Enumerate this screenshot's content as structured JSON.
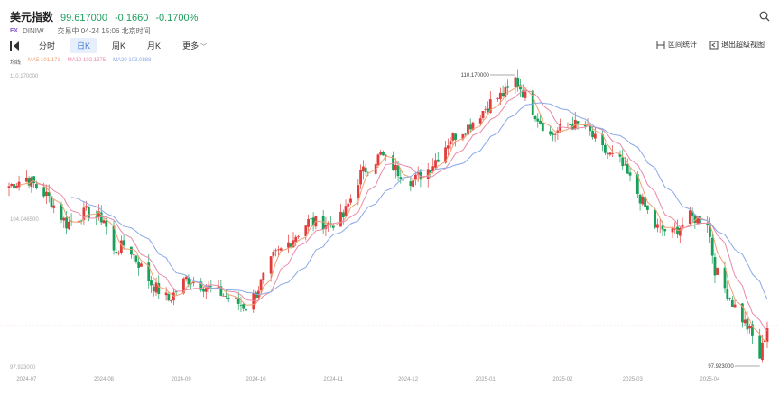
{
  "header": {
    "name": "美元指数",
    "price": "99.617000",
    "change": "-0.1660",
    "change_pct": "-0.1700%",
    "market_tag": "FX",
    "code": "DINIW",
    "status": "交易中 04-24 15:06 北京时间"
  },
  "toolbar": {
    "tabs": [
      {
        "label": "分时",
        "active": false
      },
      {
        "label": "日K",
        "active": true
      },
      {
        "label": "周K",
        "active": false
      },
      {
        "label": "月K",
        "active": false
      },
      {
        "label": "更多",
        "active": false
      }
    ],
    "range_stats": "区间统计",
    "exit_mode": "退出超级视图"
  },
  "legend": {
    "label": "均线",
    "ma5": "MA5 101.171",
    "ma10": "MA10 102.1375",
    "ma20": "MA20 103.0888"
  },
  "colors": {
    "up": "#e23c3c",
    "down": "#16a05a",
    "ma5": "#f0a070",
    "ma10": "#e88aa8",
    "ma20": "#8aa8e8",
    "accent": "#3c78d8"
  },
  "chart_data": {
    "type": "candlestick",
    "y_axis_labels": [
      "110.170000",
      "104.046500",
      "97.923000"
    ],
    "ylim": [
      97.923,
      110.17
    ],
    "high_marker": "110.170000",
    "low_marker": "97.923000",
    "reference_line": 99.617,
    "x_labels": [
      "2024-07",
      "2024-08",
      "2024-09",
      "2024-10",
      "2024-11",
      "2024-12",
      "2025-01",
      "2025-02",
      "2025-03",
      "2025-04"
    ],
    "x_label_dates": [
      "2024-07-01",
      "2024-08-01",
      "2024-09-01",
      "2024-10-01",
      "2024-11-01",
      "2024-12-01",
      "2025-01-01",
      "2025-02-01",
      "2025-03-01",
      "2025-04-01"
    ],
    "date_range": [
      "2024-06-24",
      "2025-04-24"
    ],
    "close_path": [
      [
        "2024-06-24",
        105.5
      ],
      [
        "2024-07-01",
        105.85
      ],
      [
        "2024-07-10",
        105.0
      ],
      [
        "2024-07-17",
        103.9
      ],
      [
        "2024-07-25",
        104.4
      ],
      [
        "2024-08-01",
        104.1
      ],
      [
        "2024-08-05",
        102.7
      ],
      [
        "2024-08-10",
        103.1
      ],
      [
        "2024-08-20",
        101.4
      ],
      [
        "2024-08-27",
        100.7
      ],
      [
        "2024-09-03",
        101.6
      ],
      [
        "2024-09-10",
        101.3
      ],
      [
        "2024-09-15",
        101.1
      ],
      [
        "2024-09-20",
        100.8
      ],
      [
        "2024-09-27",
        100.4
      ],
      [
        "2024-10-01",
        101.0
      ],
      [
        "2024-10-08",
        102.5
      ],
      [
        "2024-10-15",
        103.2
      ],
      [
        "2024-10-22",
        104.0
      ],
      [
        "2024-10-31",
        103.9
      ],
      [
        "2024-11-05",
        104.2
      ],
      [
        "2024-11-12",
        106.0
      ],
      [
        "2024-11-20",
        106.8
      ],
      [
        "2024-11-27",
        106.1
      ],
      [
        "2024-12-03",
        105.7
      ],
      [
        "2024-12-10",
        106.3
      ],
      [
        "2024-12-18",
        107.5
      ],
      [
        "2024-12-25",
        108.0
      ],
      [
        "2025-01-03",
        109.0
      ],
      [
        "2025-01-10",
        109.5
      ],
      [
        "2025-01-13",
        110.0
      ],
      [
        "2025-01-20",
        108.7
      ],
      [
        "2025-01-27",
        107.6
      ],
      [
        "2025-02-03",
        108.1
      ],
      [
        "2025-02-10",
        108.0
      ],
      [
        "2025-02-17",
        107.0
      ],
      [
        "2025-02-24",
        106.5
      ],
      [
        "2025-03-03",
        105.2
      ],
      [
        "2025-03-10",
        103.8
      ],
      [
        "2025-03-17",
        103.5
      ],
      [
        "2025-03-24",
        104.2
      ],
      [
        "2025-03-31",
        104.0
      ],
      [
        "2025-04-03",
        102.0
      ],
      [
        "2025-04-10",
        100.6
      ],
      [
        "2025-04-17",
        99.4
      ],
      [
        "2025-04-21",
        98.3
      ],
      [
        "2025-04-24",
        99.6
      ]
    ],
    "ma_series": [
      {
        "name": "MA5",
        "color_key": "ma5",
        "window": 5
      },
      {
        "name": "MA10",
        "color_key": "ma10",
        "window": 10
      },
      {
        "name": "MA20",
        "color_key": "ma20",
        "window": 20
      }
    ],
    "grid": false
  }
}
